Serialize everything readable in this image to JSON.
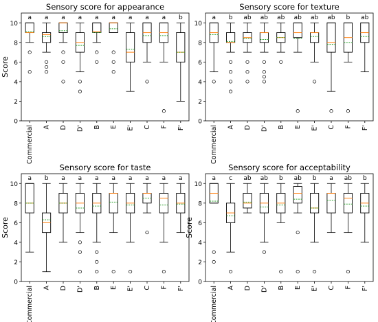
{
  "figure": {
    "colors": {
      "median": "#ff7f0e",
      "mean": "#2ca02c",
      "box": "#000000"
    }
  },
  "chart_data": [
    {
      "type": "box",
      "title": "Sensory score for appearance",
      "ylabel": "Score",
      "categories": [
        "Commercial",
        "A",
        "D",
        "D'",
        "B",
        "E",
        "E'",
        "C",
        "F",
        "F'"
      ],
      "letters": [
        "a",
        "a",
        "a",
        "a",
        "a",
        "a",
        "a",
        "a",
        "a",
        "b"
      ],
      "ylim": [
        0,
        11
      ],
      "yticks": [
        0,
        2,
        4,
        6,
        8,
        10
      ],
      "boxes": [
        {
          "whislo": 8,
          "q1": 9,
          "med": 9,
          "mean": 9.1,
          "q3": 10,
          "whishi": 10,
          "fliers": [
            7,
            5
          ]
        },
        {
          "whislo": 7,
          "q1": 8,
          "med": 8.8,
          "mean": 8.6,
          "q3": 9,
          "whishi": 10,
          "fliers": [
            6,
            5.5,
            5
          ]
        },
        {
          "whislo": 8,
          "q1": 9,
          "med": 10,
          "mean": 9.2,
          "q3": 10,
          "whishi": 10,
          "fliers": [
            7,
            6,
            4
          ]
        },
        {
          "whislo": 5,
          "q1": 7,
          "med": 8,
          "mean": 7.7,
          "q3": 9,
          "whishi": 10,
          "fliers": [
            4,
            3
          ]
        },
        {
          "whislo": 8,
          "q1": 9,
          "med": 9.1,
          "mean": 9.0,
          "q3": 10,
          "whishi": 10,
          "fliers": [
            7,
            6
          ]
        },
        {
          "whislo": 9,
          "q1": 9,
          "med": 10,
          "mean": 9.4,
          "q3": 10,
          "whishi": 10,
          "fliers": [
            7,
            6,
            5
          ]
        },
        {
          "whislo": 3,
          "q1": 6,
          "med": 7,
          "mean": 7.3,
          "q3": 9,
          "whishi": 10,
          "fliers": []
        },
        {
          "whislo": 6,
          "q1": 8,
          "med": 9,
          "mean": 8.7,
          "q3": 10,
          "whishi": 10,
          "fliers": [
            4
          ]
        },
        {
          "whislo": 6,
          "q1": 8,
          "med": 9,
          "mean": 8.7,
          "q3": 10,
          "whishi": 10,
          "fliers": [
            1
          ]
        },
        {
          "whislo": 2,
          "q1": 6,
          "med": 7,
          "mean": 7.0,
          "q3": 9,
          "whishi": 10,
          "fliers": []
        }
      ]
    },
    {
      "type": "box",
      "title": "Sensory score for texture",
      "ylabel": "",
      "categories": [
        "Commercial",
        "A",
        "D",
        "D'",
        "B",
        "E",
        "E'",
        "C",
        "F",
        "F'"
      ],
      "letters": [
        "a",
        "b",
        "ab",
        "ab",
        "ab",
        "ab",
        "ab",
        "ab",
        "b",
        "ab"
      ],
      "ylim": [
        0,
        11
      ],
      "yticks": [
        0,
        2,
        4,
        6,
        8,
        10
      ],
      "boxes": [
        {
          "whislo": 5,
          "q1": 8,
          "med": 9,
          "mean": 8.8,
          "q3": 10,
          "whishi": 10,
          "fliers": [
            4
          ]
        },
        {
          "whislo": 7,
          "q1": 8,
          "med": 8,
          "mean": 8.1,
          "q3": 9,
          "whishi": 10,
          "fliers": [
            6,
            5,
            4,
            3
          ]
        },
        {
          "whislo": 7,
          "q1": 8,
          "med": 8.5,
          "mean": 8.4,
          "q3": 9,
          "whishi": 10,
          "fliers": [
            6,
            5,
            4
          ]
        },
        {
          "whislo": 7,
          "q1": 8,
          "med": 9,
          "mean": 8.3,
          "q3": 9,
          "whishi": 10,
          "fliers": [
            6,
            5,
            4.5,
            4
          ]
        },
        {
          "whislo": 7,
          "q1": 8,
          "med": 8.5,
          "mean": 8.5,
          "q3": 9,
          "whishi": 10,
          "fliers": [
            6
          ]
        },
        {
          "whislo": 7,
          "q1": 8.5,
          "med": 9,
          "mean": 8.4,
          "q3": 10,
          "whishi": 10,
          "fliers": [
            1
          ]
        },
        {
          "whislo": 6,
          "q1": 8,
          "med": 9,
          "mean": 8.6,
          "q3": 9,
          "whishi": 10,
          "fliers": [
            4
          ]
        },
        {
          "whislo": 3,
          "q1": 7,
          "med": 8,
          "mean": 7.8,
          "q3": 10,
          "whishi": 10,
          "fliers": [
            1
          ]
        },
        {
          "whislo": 6,
          "q1": 7,
          "med": 8.5,
          "mean": 8.0,
          "q3": 10,
          "whishi": 10,
          "fliers": [
            1
          ]
        },
        {
          "whislo": 5,
          "q1": 8,
          "med": 9,
          "mean": 8.6,
          "q3": 10,
          "whishi": 10,
          "fliers": []
        }
      ]
    },
    {
      "type": "box",
      "title": "Sensory score for taste",
      "ylabel": "Score",
      "categories": [
        "Commercial",
        "A",
        "D",
        "D'",
        "B",
        "E",
        "E'",
        "C",
        "F",
        "F'"
      ],
      "letters": [
        "a",
        "b",
        "a",
        "a",
        "a",
        "a",
        "a",
        "a",
        "a",
        "a"
      ],
      "ylim": [
        0,
        11
      ],
      "yticks": [
        0,
        2,
        4,
        6,
        8,
        10
      ],
      "boxes": [
        {
          "whislo": 3,
          "q1": 7,
          "med": 8,
          "mean": 8.0,
          "q3": 10,
          "whishi": 10,
          "fliers": []
        },
        {
          "whislo": 1,
          "q1": 5,
          "med": 6,
          "mean": 6.3,
          "q3": 7,
          "whishi": 10,
          "fliers": []
        },
        {
          "whislo": 4,
          "q1": 7,
          "med": 8,
          "mean": 8.0,
          "q3": 9,
          "whishi": 10,
          "fliers": []
        },
        {
          "whislo": 5,
          "q1": 7,
          "med": 8,
          "mean": 7.5,
          "q3": 9,
          "whishi": 10,
          "fliers": [
            4,
            3,
            1
          ]
        },
        {
          "whislo": 4,
          "q1": 7,
          "med": 8,
          "mean": 7.7,
          "q3": 9,
          "whishi": 10,
          "fliers": [
            3,
            2,
            1
          ]
        },
        {
          "whislo": 5,
          "q1": 7,
          "med": 9,
          "mean": 8.1,
          "q3": 9,
          "whishi": 10,
          "fliers": [
            1
          ]
        },
        {
          "whislo": 4,
          "q1": 7,
          "med": 8,
          "mean": 7.8,
          "q3": 9,
          "whishi": 10,
          "fliers": [
            1
          ]
        },
        {
          "whislo": 7,
          "q1": 8,
          "med": 9,
          "mean": 8.5,
          "q3": 9,
          "whishi": 10,
          "fliers": [
            5
          ]
        },
        {
          "whislo": 4,
          "q1": 7,
          "med": 8.5,
          "mean": 7.8,
          "q3": 9,
          "whishi": 10,
          "fliers": [
            1
          ]
        },
        {
          "whislo": 5,
          "q1": 7,
          "med": 8,
          "mean": 7.9,
          "q3": 9,
          "whishi": 10,
          "fliers": []
        }
      ]
    },
    {
      "type": "box",
      "title": "Sensory score for acceptability",
      "ylabel": "Score",
      "categories": [
        "Commercial",
        "A",
        "D",
        "D'",
        "B",
        "E",
        "E'",
        "C",
        "F",
        "F'"
      ],
      "letters": [
        "a",
        "c",
        "ab",
        "ab",
        "b",
        "ab",
        "b",
        "a",
        "ab",
        "b"
      ],
      "ylim": [
        0,
        11
      ],
      "yticks": [
        0,
        2,
        4,
        6,
        8,
        10
      ],
      "boxes": [
        {
          "whislo": 8,
          "q1": 8,
          "med": 9,
          "mean": 8.2,
          "q3": 10,
          "whishi": 10,
          "fliers": [
            3,
            2
          ]
        },
        {
          "whislo": 3,
          "q1": 6,
          "med": 7,
          "mean": 6.7,
          "q3": 8,
          "whishi": 10,
          "fliers": [
            1
          ]
        },
        {
          "whislo": 7,
          "q1": 7.5,
          "med": 8,
          "mean": 8.1,
          "q3": 9,
          "whishi": 10,
          "fliers": []
        },
        {
          "whislo": 4,
          "q1": 7,
          "med": 8,
          "mean": 7.6,
          "q3": 9,
          "whishi": 10,
          "fliers": [
            3
          ]
        },
        {
          "whislo": 6,
          "q1": 7,
          "med": 8,
          "mean": 7.8,
          "q3": 9,
          "whishi": 10,
          "fliers": [
            1
          ]
        },
        {
          "whislo": 7,
          "q1": 8,
          "med": 9,
          "mean": 8.4,
          "q3": 9.7,
          "whishi": 10,
          "fliers": [
            5,
            1
          ]
        },
        {
          "whislo": 4,
          "q1": 7,
          "med": 7.5,
          "mean": 7.5,
          "q3": 9,
          "whishi": 10,
          "fliers": [
            1
          ]
        },
        {
          "whislo": 5,
          "q1": 7,
          "med": 9,
          "mean": 8.3,
          "q3": 9,
          "whishi": 10,
          "fliers": []
        },
        {
          "whislo": 5,
          "q1": 7,
          "med": 8.5,
          "mean": 7.9,
          "q3": 9,
          "whishi": 10,
          "fliers": [
            1
          ]
        },
        {
          "whislo": 4,
          "q1": 7,
          "med": 8,
          "mean": 7.7,
          "q3": 9,
          "whishi": 10,
          "fliers": []
        }
      ]
    }
  ]
}
